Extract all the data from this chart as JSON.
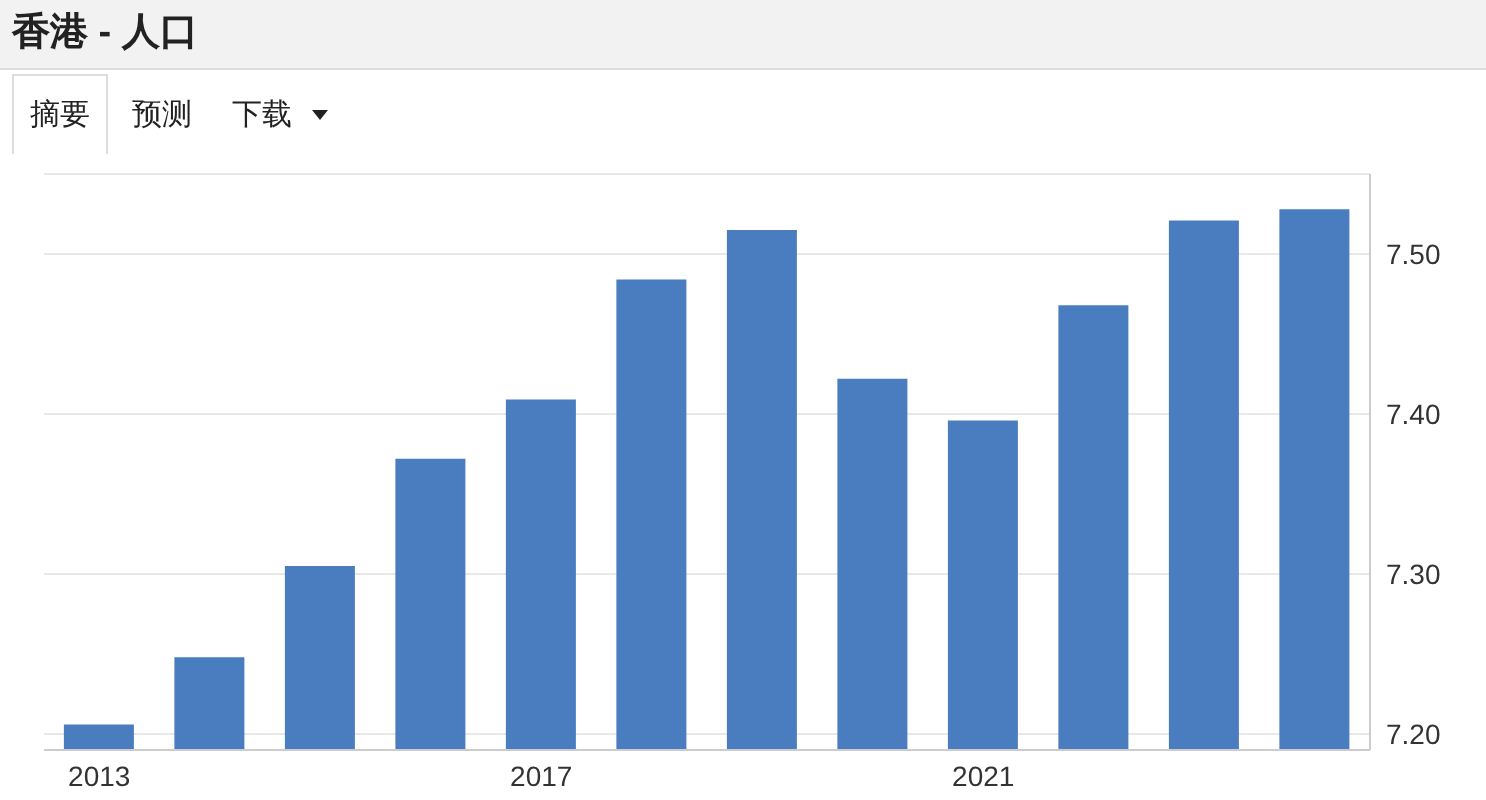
{
  "chart_data": {
    "type": "bar",
    "title": "香港 - 人口",
    "annotations": [
      "摘要",
      "预测",
      "下载"
    ],
    "categories": [
      "2013",
      null,
      null,
      null,
      "2017",
      null,
      null,
      null,
      "2021",
      null,
      null,
      null
    ],
    "values": [
      7.206,
      7.248,
      7.305,
      7.372,
      7.409,
      7.484,
      7.515,
      7.422,
      7.396,
      7.468,
      7.521,
      7.528
    ],
    "color": "#4a7cc0",
    "ylim": [
      7.19,
      7.55
    ],
    "yticks": [
      {
        "value": 7.2,
        "label": "7.20"
      },
      {
        "value": 7.3,
        "label": "7.30"
      },
      {
        "value": 7.4,
        "label": "7.40"
      },
      {
        "value": 7.5,
        "label": "7.50"
      }
    ],
    "grid": "y"
  }
}
